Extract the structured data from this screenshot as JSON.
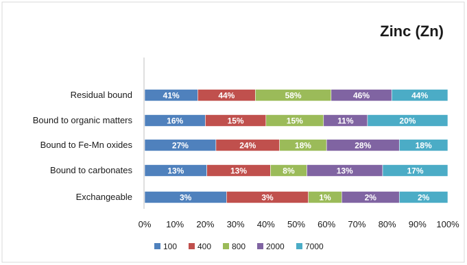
{
  "chart_data": {
    "type": "bar",
    "orientation": "horizontal",
    "stacked": "percent",
    "title": "Zinc (Zn)",
    "categories": [
      "Exchangeable",
      "Bound to carbonates",
      "Bound to Fe-Mn oxides",
      "Bound to organic matters",
      "Residual bound"
    ],
    "series": [
      {
        "name": "100",
        "color": "#4f81bd",
        "labels": [
          "3%",
          "13%",
          "27%",
          "16%",
          "41%"
        ],
        "shares": [
          27,
          20.5,
          23.5,
          20,
          17.5
        ]
      },
      {
        "name": "400",
        "color": "#c0504d",
        "labels": [
          "3%",
          "13%",
          "24%",
          "15%",
          "44%"
        ],
        "shares": [
          27,
          21,
          21,
          20,
          19
        ]
      },
      {
        "name": "800",
        "color": "#9bbb59",
        "labels": [
          "1%",
          "8%",
          "18%",
          "15%",
          "58%"
        ],
        "shares": [
          11,
          12,
          15.5,
          19,
          25
        ]
      },
      {
        "name": "2000",
        "color": "#8064a2",
        "labels": [
          "2%",
          "13%",
          "28%",
          "11%",
          "46%"
        ],
        "shares": [
          19,
          25,
          24,
          14.5,
          20
        ]
      },
      {
        "name": "7000",
        "color": "#4bacc6",
        "labels": [
          "2%",
          "17%",
          "18%",
          "20%",
          "44%"
        ],
        "shares": [
          16,
          21.5,
          16,
          26.5,
          18.5
        ]
      }
    ],
    "xlim": [
      0,
      100
    ],
    "xticks": [
      "0%",
      "10%",
      "20%",
      "30%",
      "40%",
      "50%",
      "60%",
      "70%",
      "80%",
      "90%",
      "100%"
    ],
    "grid": false,
    "legend_position": "bottom"
  }
}
